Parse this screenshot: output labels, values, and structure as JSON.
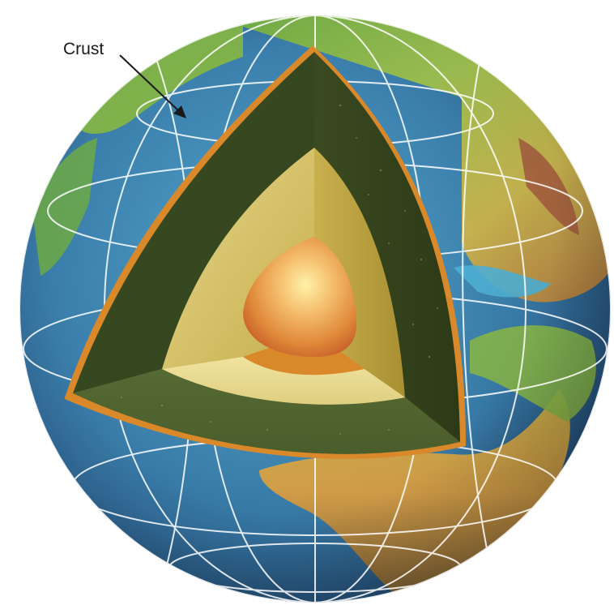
{
  "diagram": {
    "labels": {
      "crust": "Crust"
    },
    "layers": [
      "crust",
      "mantle",
      "outer-core",
      "inner-core"
    ],
    "colors": {
      "ocean_deep": "#2c5f8f",
      "ocean_shallow": "#4fa6c9",
      "land_green": "#5c9e3c",
      "land_yellow": "#c7b04a",
      "land_brown": "#9a5a3a",
      "crust_rim": "#d9892a",
      "mantle": "#3f5226",
      "outer_core": "#d8c35a",
      "inner_core": "#e8903a",
      "grid_lines": "#ffffff"
    }
  }
}
